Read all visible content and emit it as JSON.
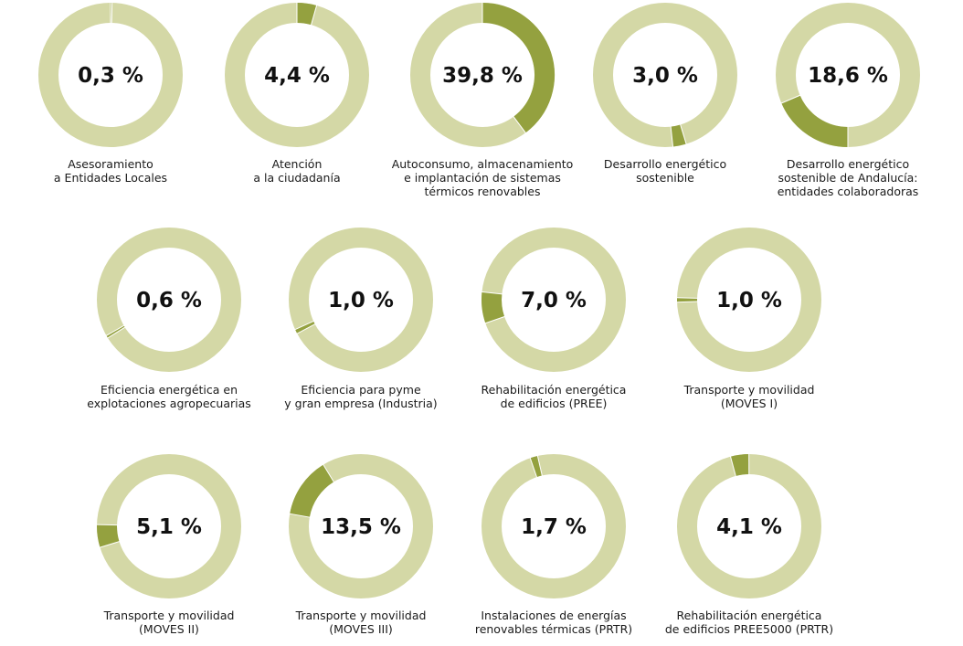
{
  "colors": {
    "ring_background": "#d4d8a6",
    "ring_highlight": "#94a13f",
    "separator": "#ffffff",
    "text": "#111111"
  },
  "chart_data": {
    "type": "pie",
    "subtype": "donut-grid",
    "unit": "%",
    "items": [
      {
        "value": 0.3,
        "display": "0,3 %",
        "label_lines": [
          "Asesoramiento",
          "a Entidades Locales"
        ]
      },
      {
        "value": 4.4,
        "display": "4,4 %",
        "label_lines": [
          "Atención",
          "a la ciudadanía"
        ]
      },
      {
        "value": 39.8,
        "display": "39,8 %",
        "label_lines": [
          "Autoconsumo, almacenamiento",
          "e implantación de sistemas",
          "térmicos renovables"
        ]
      },
      {
        "value": 3.0,
        "display": "3,0 %",
        "label_lines": [
          "Desarrollo energético",
          "sostenible"
        ]
      },
      {
        "value": 18.6,
        "display": "18,6 %",
        "label_lines": [
          "Desarrollo energético",
          "sostenible de Andalucía:",
          "entidades colaboradoras"
        ]
      },
      {
        "value": 0.6,
        "display": "0,6 %",
        "label_lines": [
          "Eficiencia energética en",
          "explotaciones agropecuarias"
        ]
      },
      {
        "value": 1.0,
        "display": "1,0 %",
        "label_lines": [
          "Eficiencia para pyme",
          "y gran empresa (Industria)"
        ]
      },
      {
        "value": 7.0,
        "display": "7,0 %",
        "label_lines": [
          "Rehabilitación energética",
          "de edificios (PREE)"
        ]
      },
      {
        "value": 1.0,
        "display": "1,0 %",
        "label_lines": [
          "Transporte y movilidad",
          "(MOVES I)"
        ]
      },
      {
        "value": 5.1,
        "display": "5,1 %",
        "label_lines": [
          "Transporte y movilidad",
          "(MOVES II)"
        ]
      },
      {
        "value": 13.5,
        "display": "13,5 %",
        "label_lines": [
          "Transporte y movilidad",
          "(MOVES III)"
        ]
      },
      {
        "value": 1.7,
        "display": "1,7 %",
        "label_lines": [
          "Instalaciones de energías",
          "renovables térmicas (PRTR)"
        ]
      },
      {
        "value": 4.1,
        "display": "4,1 %",
        "label_lines": [
          "Rehabilitación energética",
          "de edificios PREE5000 (PRTR)"
        ]
      }
    ]
  }
}
